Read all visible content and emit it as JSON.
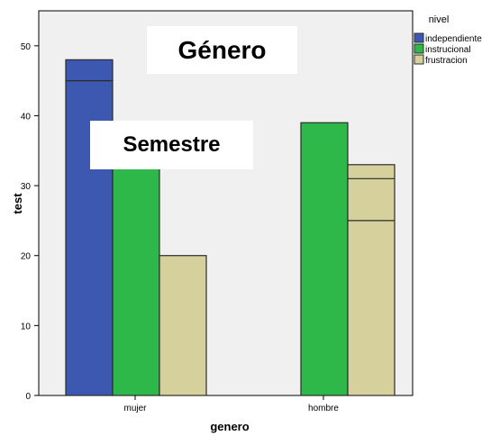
{
  "chart_data": {
    "type": "bar",
    "xlabel": "genero",
    "ylabel": "test",
    "ylim": [
      0,
      55
    ],
    "yticks": [
      0,
      10,
      20,
      30,
      40,
      50
    ],
    "grid": false,
    "categories": [
      "mujer",
      "hombre"
    ],
    "legend": {
      "title": "nivel",
      "placement": "right"
    },
    "series": [
      {
        "name": "independiente",
        "color": "#3d58b0",
        "values": [
          48,
          null
        ],
        "inner_lines": [
          [
            45
          ],
          []
        ]
      },
      {
        "name": "instrucional",
        "color": "#2eb84a",
        "values": [
          36,
          39
        ],
        "inner_lines": [
          [],
          []
        ]
      },
      {
        "name": "frustracion",
        "color": "#d6d09c",
        "values": [
          20,
          33
        ],
        "inner_lines": [
          [],
          [
            31,
            25
          ]
        ]
      }
    ]
  },
  "overlays": {
    "genero": "Género",
    "semestre": "Semestre"
  }
}
